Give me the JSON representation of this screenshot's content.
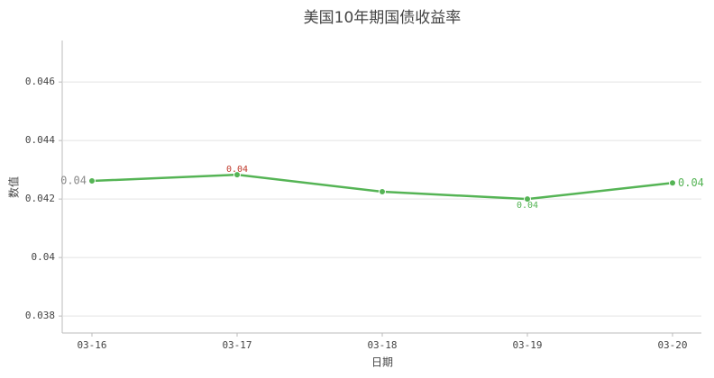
{
  "chart_data": {
    "type": "line",
    "title": "美国10年期国债收益率",
    "x_label": "日期",
    "y_label": "数值",
    "categories": [
      "03-16",
      "03-17",
      "03-18",
      "03-19",
      "03-20"
    ],
    "series": [
      {
        "name": "美国10年期国债收益率",
        "color": "#55b455",
        "values": [
          0.04262,
          0.04283,
          0.04225,
          0.042,
          0.04255
        ],
        "value_labels": [
          "0.04",
          "0.04",
          null,
          "0.04",
          "0.04"
        ],
        "value_label_colors": [
          "#888888",
          "#c0392b",
          null,
          "#55b455",
          "#55b455"
        ]
      }
    ],
    "ylim": [
      0.03742,
      0.04742
    ],
    "yticks": [
      0.038,
      0.04,
      0.042,
      0.044,
      0.046
    ],
    "grid": true
  }
}
